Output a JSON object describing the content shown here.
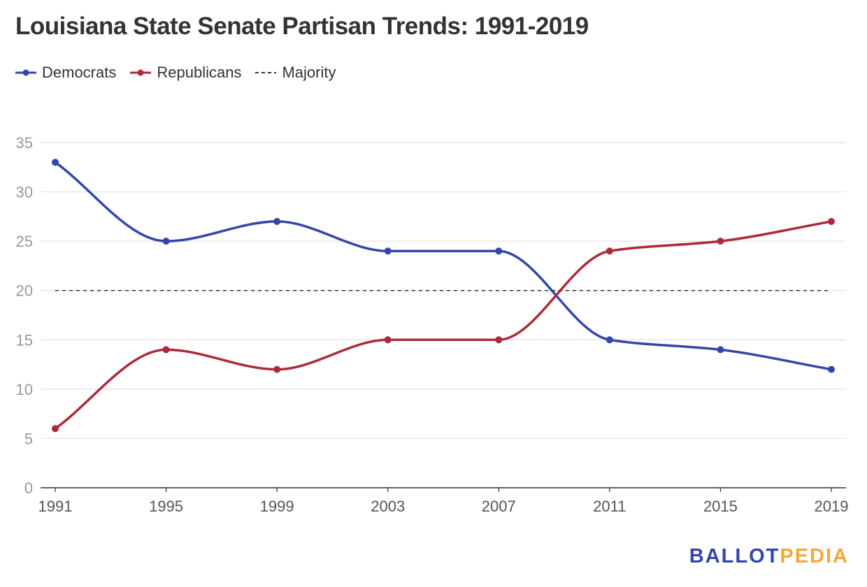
{
  "header": {
    "title": "Louisiana State Senate Partisan Trends: 1991-2019"
  },
  "legend": [
    {
      "label": "Democrats",
      "color": "#3446a8",
      "style": "line-dot"
    },
    {
      "label": "Republicans",
      "color": "#ab2b3b",
      "style": "line-dot"
    },
    {
      "label": "Majority",
      "color": "#333333",
      "style": "dashed"
    }
  ],
  "chart_data": {
    "type": "line",
    "title": "Louisiana State Senate Partisan Trends: 1991-2019",
    "xlabel": "",
    "ylabel": "",
    "x": [
      "1991",
      "1995",
      "1999",
      "2003",
      "2007",
      "2011",
      "2015",
      "2019"
    ],
    "series": [
      {
        "name": "Democrats",
        "color": "#3446a8",
        "values": [
          33,
          25,
          27,
          24,
          24,
          15,
          14,
          12
        ]
      },
      {
        "name": "Republicans",
        "color": "#ab2b3b",
        "values": [
          6,
          14,
          12,
          15,
          15,
          24,
          25,
          27
        ]
      },
      {
        "name": "Majority",
        "color": "#333333",
        "values": [
          20,
          20,
          20,
          20,
          20,
          20,
          20,
          20
        ],
        "dashed": true
      }
    ],
    "ylim": [
      0,
      35
    ],
    "yticks": [
      0,
      5,
      10,
      15,
      20,
      25,
      30,
      35
    ],
    "grid": true,
    "legend_position": "top-left"
  },
  "brand": {
    "part1": "BALLOT",
    "part2": "PEDIA",
    "color1": "#3446a8",
    "color2": "#f2a93b"
  }
}
